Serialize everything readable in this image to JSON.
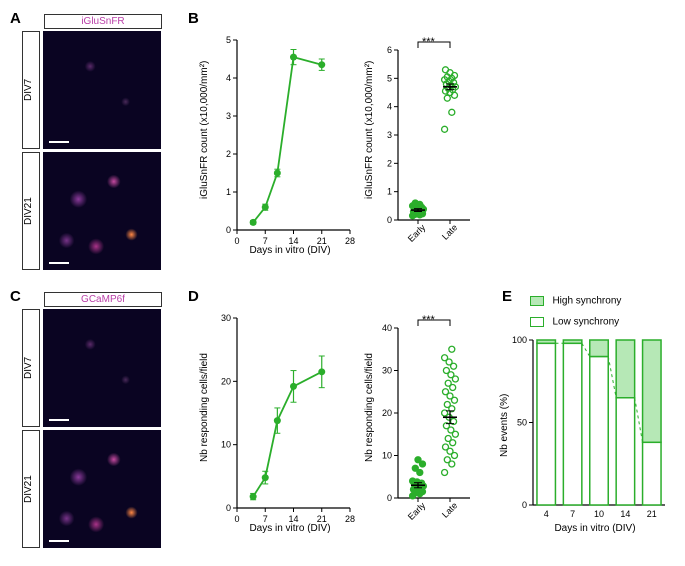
{
  "labels": {
    "A": "A",
    "B": "B",
    "C": "C",
    "D": "D",
    "E": "E"
  },
  "panelA": {
    "channel": "iGluSnFR",
    "channel_color": "#b93fa8",
    "rows": [
      {
        "label": "DIV7",
        "dense": false
      },
      {
        "label": "DIV21",
        "dense": true
      }
    ]
  },
  "panelC": {
    "channel": "GCaMP6f",
    "channel_color": "#b93fa8",
    "rows": [
      {
        "label": "DIV7",
        "dense": false
      },
      {
        "label": "DIV21",
        "dense": true
      }
    ]
  },
  "panelB": {
    "line": {
      "xlabel": "Days in vitro (DIV)",
      "ylabel": "iGluSnFR count (x10,000/mm²)",
      "xlim": [
        0,
        28
      ],
      "ylim": [
        0,
        5
      ],
      "xticks": [
        0,
        7,
        14,
        21,
        28
      ],
      "yticks": [
        0,
        1,
        2,
        3,
        4,
        5
      ],
      "points": [
        {
          "x": 4,
          "y": 0.2,
          "err": 0.05
        },
        {
          "x": 7,
          "y": 0.6,
          "err": 0.08
        },
        {
          "x": 10,
          "y": 1.5,
          "err": 0.1
        },
        {
          "x": 14,
          "y": 4.55,
          "err": 0.2
        },
        {
          "x": 21,
          "y": 4.35,
          "err": 0.15
        }
      ],
      "color": "#2bae2b"
    },
    "scatter": {
      "ylabel": "iGluSnFR count (x10,000/mm²)",
      "ylim": [
        0,
        6
      ],
      "yticks": [
        0,
        1,
        2,
        3,
        4,
        5,
        6
      ],
      "categories": [
        "Early",
        "Late"
      ],
      "early": {
        "points": [
          0.15,
          0.18,
          0.2,
          0.22,
          0.25,
          0.3,
          0.32,
          0.35,
          0.38,
          0.4,
          0.42,
          0.45,
          0.48,
          0.5,
          0.55,
          0.6
        ],
        "mean": 0.35,
        "sem": 0.05,
        "marker": "filled"
      },
      "late": {
        "points": [
          3.2,
          3.8,
          4.3,
          4.4,
          4.5,
          4.55,
          4.6,
          4.65,
          4.7,
          4.75,
          4.8,
          4.85,
          4.9,
          4.95,
          5.0,
          5.05,
          5.1,
          5.2,
          5.3
        ],
        "mean": 4.7,
        "sem": 0.1,
        "marker": "open"
      },
      "sig": "***",
      "color": "#2bae2b"
    }
  },
  "panelD": {
    "line": {
      "xlabel": "Days in vitro (DIV)",
      "ylabel": "Nb responding cells/field",
      "xlim": [
        0,
        28
      ],
      "ylim": [
        0,
        30
      ],
      "xticks": [
        0,
        7,
        14,
        21,
        28
      ],
      "yticks": [
        0,
        10,
        20,
        30
      ],
      "points": [
        {
          "x": 4,
          "y": 1.8,
          "err": 0.5
        },
        {
          "x": 7,
          "y": 4.8,
          "err": 1.0
        },
        {
          "x": 10,
          "y": 13.8,
          "err": 2.0
        },
        {
          "x": 14,
          "y": 19.2,
          "err": 2.5
        },
        {
          "x": 21,
          "y": 21.5,
          "err": 2.5
        }
      ],
      "color": "#2bae2b"
    },
    "scatter": {
      "ylabel": "Nb responding cells/field",
      "ylim": [
        0,
        40
      ],
      "yticks": [
        0,
        10,
        20,
        30,
        40
      ],
      "categories": [
        "Early",
        "Late"
      ],
      "early": {
        "points": [
          0.5,
          1,
          1.2,
          1.5,
          1.8,
          2,
          2.2,
          2.5,
          2.8,
          3,
          3.2,
          3.5,
          3.8,
          4,
          6,
          7,
          8,
          9
        ],
        "mean": 3,
        "sem": 0.6,
        "marker": "filled"
      },
      "late": {
        "points": [
          6,
          8,
          9,
          10,
          11,
          12,
          13,
          14,
          15,
          16,
          17,
          18,
          19,
          20,
          21,
          22,
          23,
          24,
          25,
          26,
          27,
          28,
          29,
          30,
          31,
          32,
          33,
          35
        ],
        "mean": 19,
        "sem": 1.5,
        "marker": "open"
      },
      "sig": "***",
      "color": "#2bae2b"
    }
  },
  "panelE": {
    "xlabel": "Days in vitro (DIV)",
    "ylabel": "Nb events (%)",
    "categories": [
      "4",
      "7",
      "10",
      "14",
      "21"
    ],
    "high": [
      2,
      2,
      10,
      35,
      62
    ],
    "low": [
      98,
      98,
      90,
      65,
      38
    ],
    "ylim": [
      0,
      100
    ],
    "yticks": [
      0,
      50,
      100
    ],
    "legend": {
      "high": "High synchrony",
      "low": "Low synchrony"
    },
    "high_fill": "#b6e8b6",
    "low_fill": "#ffffff",
    "border": "#2bae2b"
  },
  "style": {
    "axis_color": "#000000",
    "font_size_label": 10,
    "font_size_tick": 9
  }
}
